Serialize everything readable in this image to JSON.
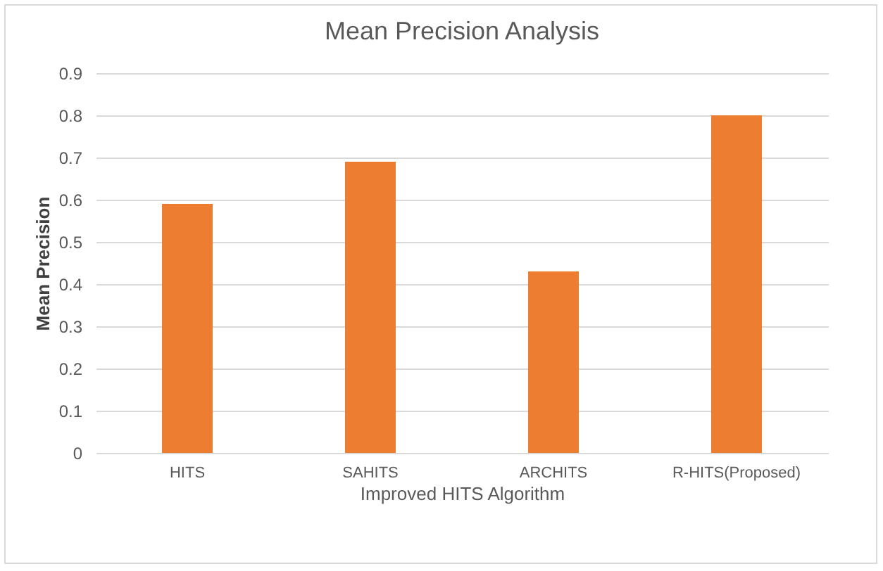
{
  "chart_data": {
    "type": "bar",
    "title": "Mean Precision Analysis",
    "xlabel": "Improved HITS Algorithm",
    "ylabel": "Mean Precision",
    "categories": [
      "HITS",
      "SAHITS",
      "ARCHITS",
      "R-HITS(Proposed)"
    ],
    "values": [
      0.59,
      0.69,
      0.43,
      0.8
    ],
    "color": "#ed7d31",
    "ylim": [
      0,
      0.9
    ],
    "yticks": [
      0,
      0.1,
      0.2,
      0.3,
      0.4,
      0.5,
      0.6,
      0.7,
      0.8,
      0.9
    ],
    "grid": "y"
  }
}
